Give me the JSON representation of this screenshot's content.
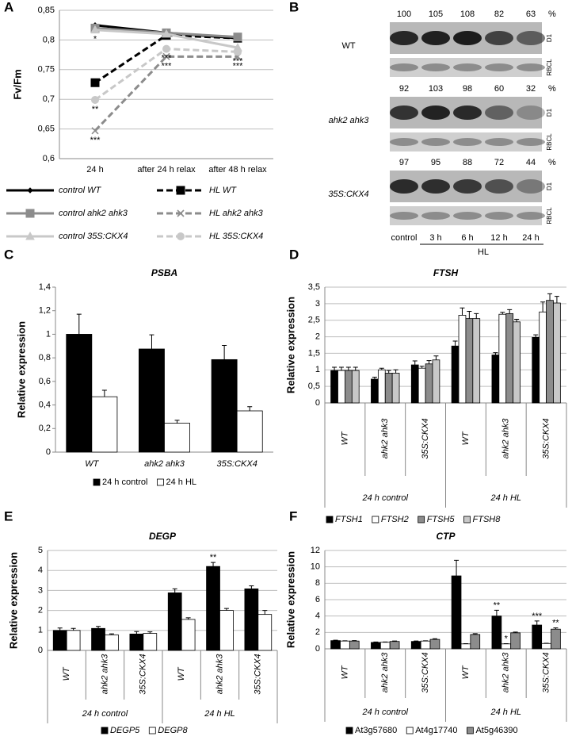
{
  "chart_data": [
    {
      "type": "line",
      "panel": "A",
      "y_label": "Fv/Fm",
      "categories": [
        "24 h",
        "after 24 h relax",
        "after 48 h relax"
      ],
      "ylim": [
        0.6,
        0.85
      ],
      "yticks": [
        {
          "value": 0.6,
          "label": "0,6"
        },
        {
          "value": 0.65,
          "label": "0,65"
        },
        {
          "value": 0.7,
          "label": "0,7"
        },
        {
          "value": 0.75,
          "label": "0,75"
        },
        {
          "value": 0.8,
          "label": "0,8"
        },
        {
          "value": 0.85,
          "label": "0,85"
        }
      ],
      "grid": true,
      "series": [
        {
          "name": "control WT",
          "color": "#000000",
          "dash": false,
          "marker": "diamond",
          "values": [
            0.825,
            0.812,
            0.803
          ]
        },
        {
          "name": "HL WT",
          "color": "#000000",
          "dash": true,
          "marker": "square",
          "values": [
            0.728,
            0.808,
            0.803
          ]
        },
        {
          "name": "control ahk2 ahk3",
          "color": "#8c8c8c",
          "dash": false,
          "marker": "square",
          "values": [
            0.82,
            0.812,
            0.805
          ]
        },
        {
          "name": "HL ahk2 ahk3",
          "color": "#8c8c8c",
          "dash": true,
          "marker": "x",
          "values": [
            0.647,
            0.772,
            0.772
          ],
          "significance": [
            "***",
            "***",
            "***"
          ]
        },
        {
          "name": "control 35S:CKX4",
          "color": "#c8c8c8",
          "dash": false,
          "marker": "triangle",
          "values": [
            0.817,
            0.81,
            0.787
          ],
          "significance": [
            "*",
            null,
            null
          ]
        },
        {
          "name": "HL 35S:CKX4",
          "color": "#c8c8c8",
          "dash": true,
          "marker": "circle",
          "values": [
            0.699,
            0.785,
            0.78
          ],
          "significance": [
            "**",
            "***",
            "***"
          ]
        }
      ]
    },
    {
      "type": "blot",
      "panel": "B",
      "unit": "%",
      "lanes": [
        "control",
        "3 h",
        "6 h",
        "12 h",
        "24 h"
      ],
      "lane_group": "HL",
      "bands": [
        "D1",
        "RBCL"
      ],
      "series": [
        {
          "name": "WT",
          "values": [
            100,
            105,
            108,
            82,
            63
          ]
        },
        {
          "name": "ahk2 ahk3",
          "values": [
            92,
            103,
            98,
            60,
            32
          ]
        },
        {
          "name": "35S:CKX4",
          "values": [
            97,
            95,
            88,
            72,
            44
          ]
        }
      ]
    },
    {
      "type": "bar",
      "panel": "C",
      "title": "PSBA",
      "y_label": "Relative expression",
      "categories": [
        "WT",
        "ahk2 ahk3",
        "35S:CKX4"
      ],
      "ylim": [
        0,
        1.4
      ],
      "yticks": [
        0,
        {
          "value": 0.2,
          "label": "0,2"
        },
        {
          "value": 0.4,
          "label": "0,4"
        },
        {
          "value": 0.6,
          "label": "0,6"
        },
        {
          "value": 0.8,
          "label": "0,8"
        },
        1,
        {
          "value": 1.2,
          "label": "1,2"
        },
        {
          "value": 1.4,
          "label": "1,4"
        }
      ],
      "grid": false,
      "series": [
        {
          "name": "24 h control",
          "color": "#000000",
          "values": [
            1.0,
            0.875,
            0.785
          ],
          "errors": [
            0.17,
            0.12,
            0.12
          ]
        },
        {
          "name": "24 h HL",
          "color": "#ffffff",
          "values": [
            0.47,
            0.245,
            0.35
          ],
          "errors": [
            0.055,
            0.025,
            0.035
          ]
        }
      ]
    },
    {
      "type": "bar",
      "panel": "D",
      "title": "FTSH",
      "y_label": "Relative expression",
      "categories": [
        "WT",
        "ahk2 ahk3",
        "35S:CKX4",
        "WT",
        "ahk2 ahk3",
        "35S:CKX4"
      ],
      "groups": [
        "24 h control",
        "24 h HL"
      ],
      "ylim": [
        0,
        3.5
      ],
      "yticks": [
        0,
        {
          "value": 0.5,
          "label": "0,5"
        },
        1,
        {
          "value": 1.5,
          "label": "1,5"
        },
        2,
        {
          "value": 2.5,
          "label": "2,5"
        },
        3,
        {
          "value": 3.5,
          "label": "3,5"
        }
      ],
      "grid": true,
      "series": [
        {
          "name": "FTSH1",
          "color": "#000000",
          "values": [
            0.98,
            0.72,
            1.15,
            1.72,
            1.45,
            1.98
          ],
          "errors": [
            0.1,
            0.06,
            0.12,
            0.15,
            0.07,
            0.08
          ]
        },
        {
          "name": "FTSH2",
          "color": "#ffffff",
          "values": [
            0.98,
            1.0,
            1.05,
            2.65,
            2.68,
            2.75
          ],
          "errors": [
            0.1,
            0.05,
            0.06,
            0.22,
            0.06,
            0.3
          ]
        },
        {
          "name": "FTSH5",
          "color": "#8c8c8c",
          "values": [
            0.98,
            0.9,
            1.18,
            2.55,
            2.7,
            3.1
          ],
          "errors": [
            0.1,
            0.08,
            0.1,
            0.22,
            0.12,
            0.2
          ]
        },
        {
          "name": "FTSH8",
          "color": "#c8c8c8",
          "values": [
            0.98,
            0.9,
            1.3,
            2.55,
            2.45,
            3.02
          ],
          "errors": [
            0.1,
            0.1,
            0.12,
            0.15,
            0.08,
            0.2
          ]
        }
      ]
    },
    {
      "type": "bar",
      "panel": "E",
      "title": "DEGP",
      "y_label": "Relative expression",
      "categories": [
        "WT",
        "ahk2 ahk3",
        "35S:CKX4",
        "WT",
        "ahk2 ahk3",
        "35S:CKX4"
      ],
      "groups": [
        "24 h control",
        "24 h HL"
      ],
      "ylim": [
        0,
        5
      ],
      "yticks": [
        0,
        1,
        2,
        3,
        4,
        5
      ],
      "grid": true,
      "series": [
        {
          "name": "DEGP5",
          "color": "#000000",
          "values": [
            1.0,
            1.1,
            0.82,
            2.88,
            4.2,
            3.08
          ],
          "errors": [
            0.12,
            0.1,
            0.12,
            0.2,
            0.2,
            0.15
          ],
          "significance": [
            null,
            null,
            null,
            null,
            "**",
            null
          ]
        },
        {
          "name": "DEGP8",
          "color": "#ffffff",
          "values": [
            1.0,
            0.78,
            0.85,
            1.55,
            2.0,
            1.8
          ],
          "errors": [
            0.1,
            0.05,
            0.08,
            0.08,
            0.1,
            0.2
          ]
        }
      ]
    },
    {
      "type": "bar",
      "panel": "F",
      "title": "CTP",
      "y_label": "Relative expression",
      "categories": [
        "WT",
        "ahk2 ahk3",
        "35S:CKX4",
        "WT",
        "ahk2 ahk3",
        "35S:CKX4"
      ],
      "groups": [
        "24 h control",
        "24 h HL"
      ],
      "ylim": [
        0,
        12
      ],
      "yticks": [
        0,
        2,
        4,
        6,
        8,
        10,
        12
      ],
      "grid": true,
      "series": [
        {
          "name": "At3g57680",
          "color": "#000000",
          "values": [
            1.0,
            0.78,
            0.9,
            8.9,
            4.0,
            2.9
          ],
          "errors": [
            0.05,
            0.05,
            0.05,
            1.9,
            0.7,
            0.5
          ],
          "significance": [
            null,
            null,
            null,
            null,
            "**",
            "***"
          ]
        },
        {
          "name": "At4g17740",
          "color": "#ffffff",
          "values": [
            0.95,
            0.8,
            0.95,
            0.6,
            0.6,
            0.65
          ],
          "errors": [
            0.03,
            0.03,
            0.03,
            0.03,
            0.03,
            0.03
          ],
          "significance": [
            null,
            null,
            null,
            null,
            "*",
            null
          ]
        },
        {
          "name": "At5g46390",
          "color": "#8c8c8c",
          "values": [
            0.95,
            0.9,
            1.15,
            1.75,
            1.95,
            2.4
          ],
          "errors": [
            0.05,
            0.05,
            0.08,
            0.1,
            0.1,
            0.15
          ],
          "significance": [
            null,
            null,
            null,
            null,
            null,
            "**"
          ]
        }
      ]
    }
  ]
}
